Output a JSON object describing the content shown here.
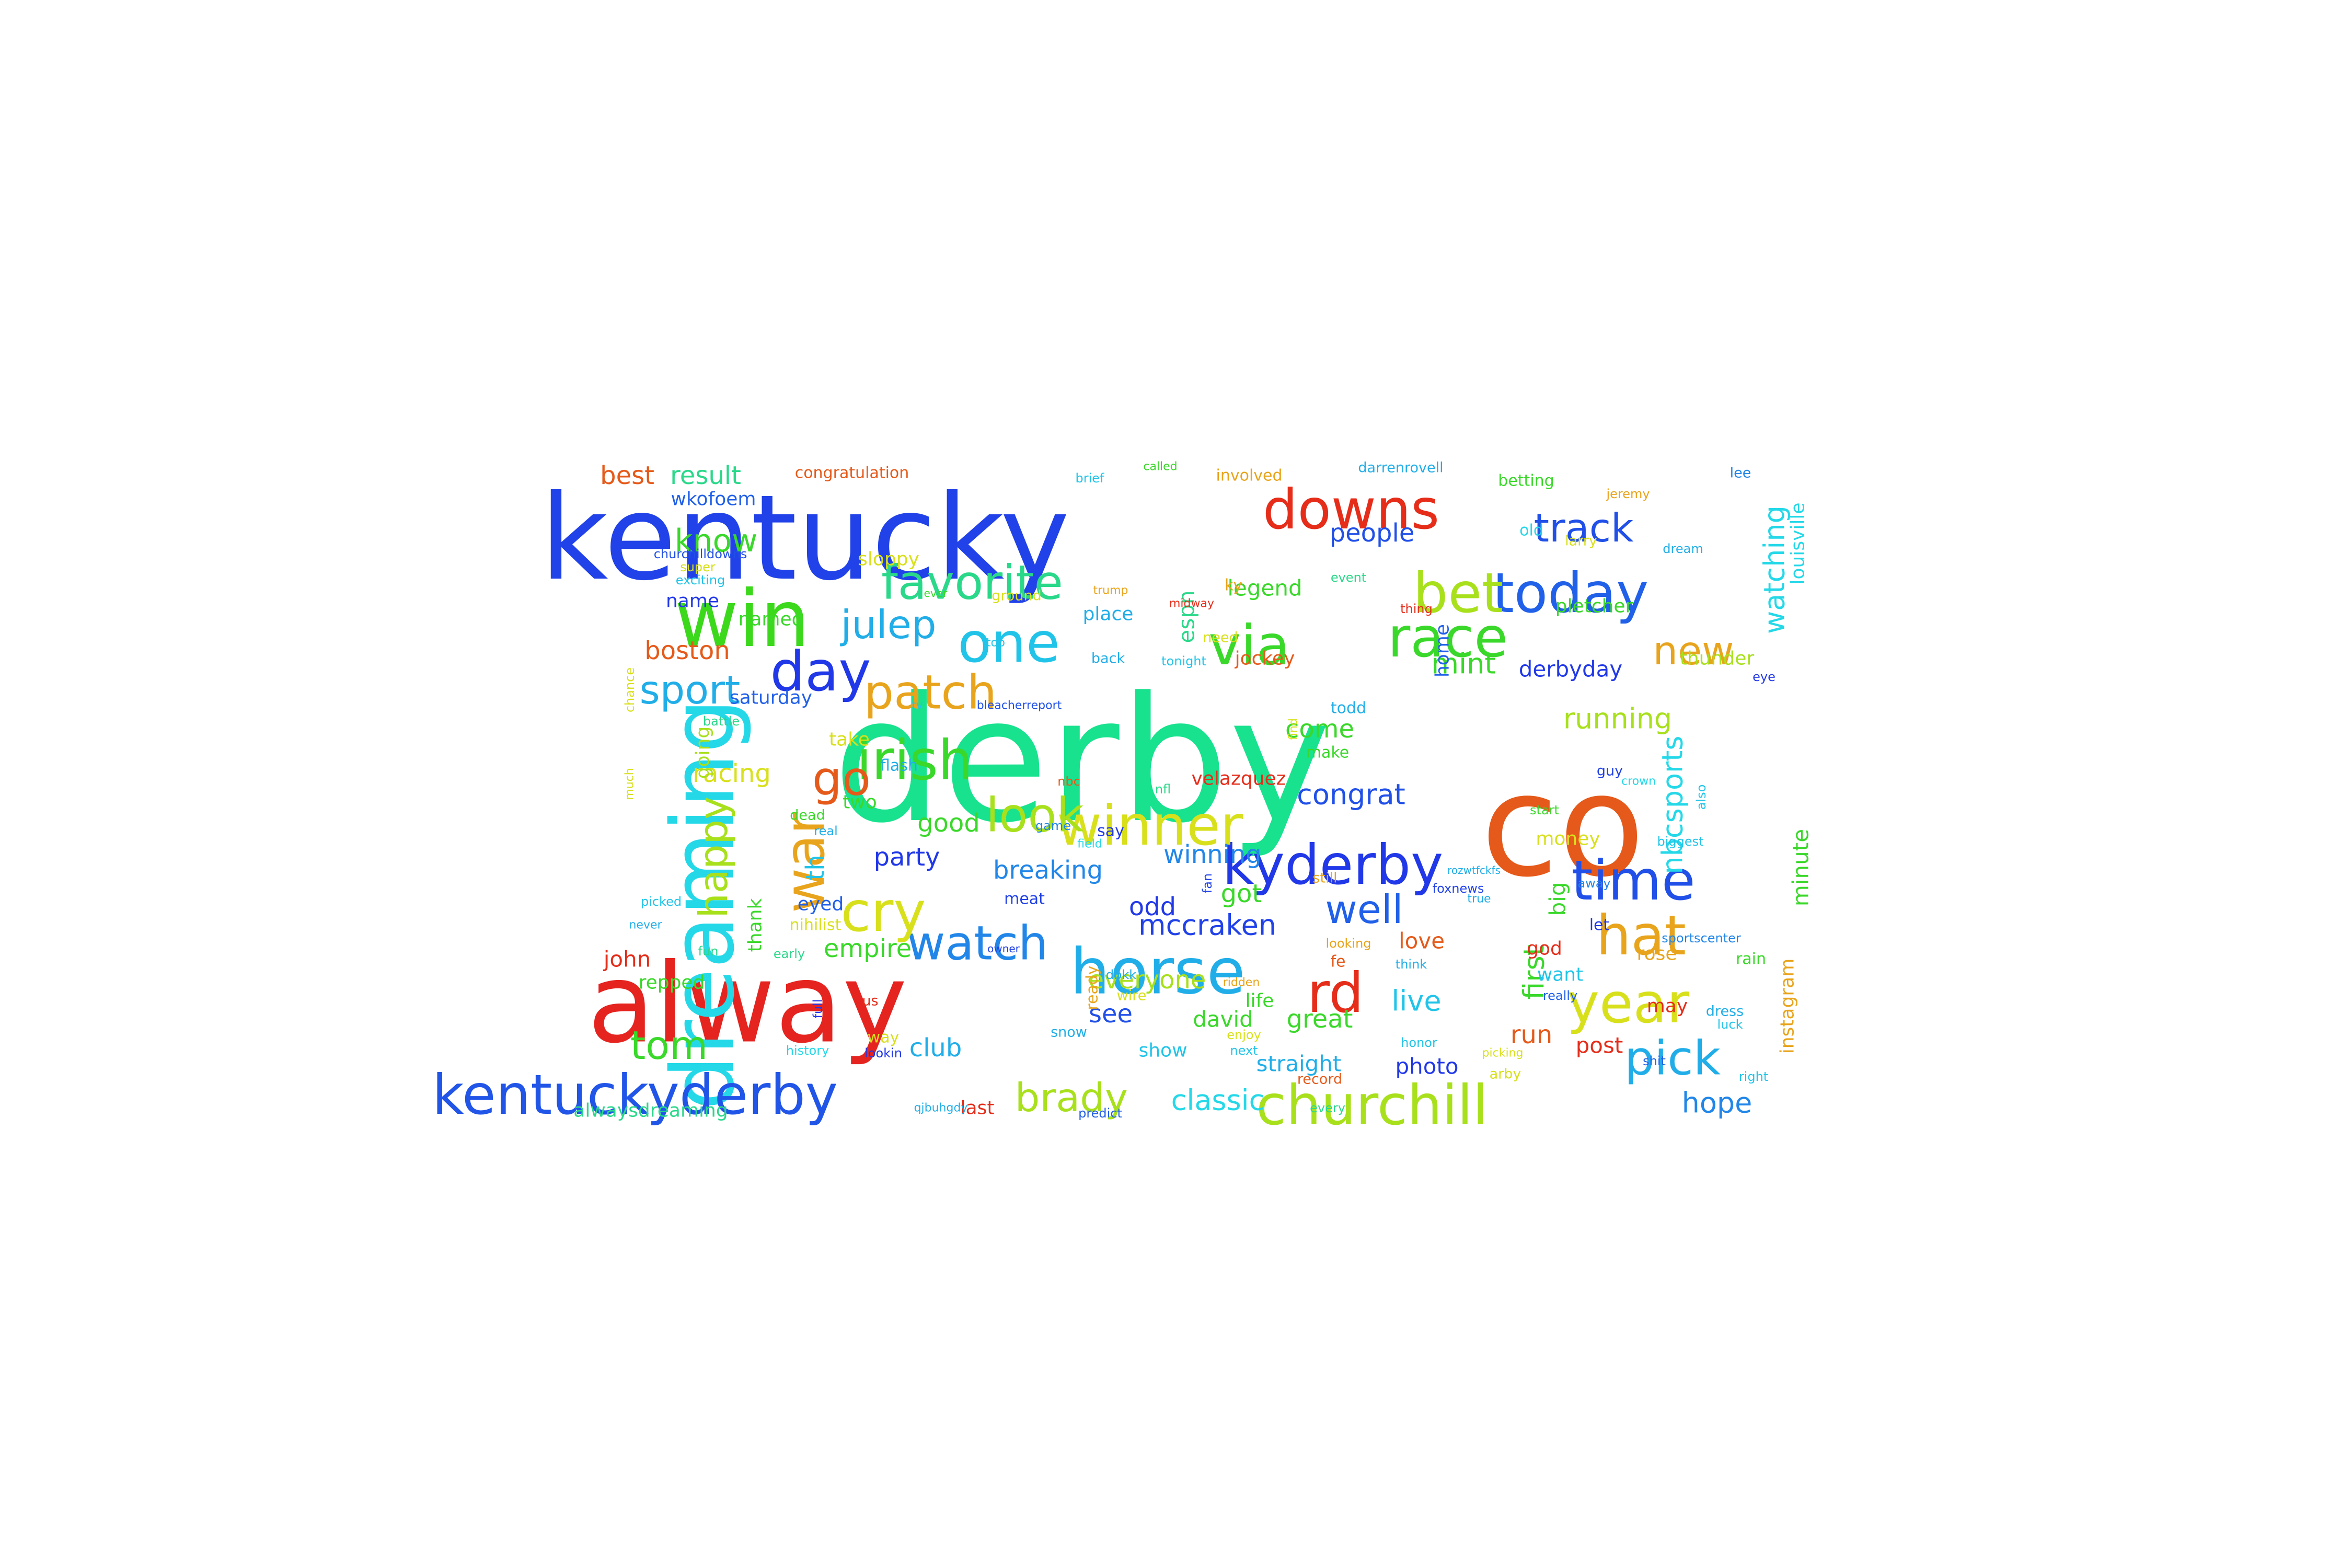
{
  "words": [
    {
      "text": "derby",
      "color": "#18e28e"
    },
    {
      "text": "alway",
      "color": "#e52420"
    },
    {
      "text": "kentucky",
      "color": "#2142e8"
    },
    {
      "text": "co",
      "color": "#e55a1a"
    },
    {
      "text": "win",
      "color": "#3cd81c"
    },
    {
      "text": "dreaming",
      "color": "#24d8e8"
    },
    {
      "text": "kentuckyderby",
      "color": "#2155e8"
    },
    {
      "text": "churchill",
      "color": "#a8e01c"
    },
    {
      "text": "downs",
      "color": "#e52d1a"
    },
    {
      "text": "today",
      "color": "#2160e8"
    },
    {
      "text": "horse",
      "color": "#21aee8"
    },
    {
      "text": "kyderby",
      "color": "#2138e8"
    },
    {
      "text": "irish",
      "color": "#3ad82a"
    },
    {
      "text": "winner",
      "color": "#d8e01c"
    },
    {
      "text": "time",
      "color": "#2150e8"
    },
    {
      "text": "watch",
      "color": "#2186e8"
    },
    {
      "text": "race",
      "color": "#3ad82a"
    },
    {
      "text": "bet",
      "color": "#a8e01c"
    },
    {
      "text": "year",
      "color": "#d8e01c"
    },
    {
      "text": "hat",
      "color": "#e8a41c"
    },
    {
      "text": "cry",
      "color": "#d8e01c"
    },
    {
      "text": "rd",
      "color": "#e52d1a"
    },
    {
      "text": "pick",
      "color": "#21aee8"
    },
    {
      "text": "via",
      "color": "#3ad82a"
    },
    {
      "text": "one",
      "color": "#21c4e8"
    },
    {
      "text": "favorite",
      "color": "#2ad88a"
    },
    {
      "text": "day",
      "color": "#2138e8"
    },
    {
      "text": "patch",
      "color": "#e8a41c"
    },
    {
      "text": "war",
      "color": "#e8a41c"
    },
    {
      "text": "go",
      "color": "#e55a1a"
    },
    {
      "text": "look",
      "color": "#a8e01c"
    },
    {
      "text": "track",
      "color": "#2150e8"
    },
    {
      "text": "new",
      "color": "#e8a41c"
    },
    {
      "text": "tom",
      "color": "#3ad82a"
    },
    {
      "text": "brady",
      "color": "#a8e01c"
    },
    {
      "text": "julep",
      "color": "#21aee8"
    },
    {
      "text": "sport",
      "color": "#21aee8"
    },
    {
      "text": "well",
      "color": "#2160e8"
    },
    {
      "text": "happy",
      "color": "#a8e01c"
    },
    {
      "text": "know",
      "color": "#3ad82a"
    },
    {
      "text": "mccraken",
      "color": "#2142e8"
    },
    {
      "text": "nbcsports",
      "color": "#24d8e8"
    },
    {
      "text": "watching",
      "color": "#24d8e8"
    },
    {
      "text": "congrat",
      "color": "#2150e8"
    },
    {
      "text": "mint",
      "color": "#3ad82a"
    },
    {
      "text": "running",
      "color": "#a8e01c"
    },
    {
      "text": "first",
      "color": "#3ad82a"
    },
    {
      "text": "hope",
      "color": "#2186e8"
    },
    {
      "text": "live",
      "color": "#21c4e8"
    },
    {
      "text": "classic",
      "color": "#24d8e8"
    },
    {
      "text": "best",
      "color": "#e55a1a"
    },
    {
      "text": "result",
      "color": "#2ad88a"
    },
    {
      "text": "people",
      "color": "#2150e8"
    },
    {
      "text": "boston",
      "color": "#e55a1a"
    },
    {
      "text": "racing",
      "color": "#d8e01c"
    },
    {
      "text": "good",
      "color": "#3ad82a"
    },
    {
      "text": "party",
      "color": "#2138e8"
    },
    {
      "text": "breaking",
      "color": "#2186e8"
    },
    {
      "text": "winning",
      "color": "#2186e8"
    },
    {
      "text": "got",
      "color": "#3ad82a"
    },
    {
      "text": "odd",
      "color": "#2138e8"
    },
    {
      "text": "empire",
      "color": "#3ad82a"
    },
    {
      "text": "everyone",
      "color": "#a8e01c"
    },
    {
      "text": "great",
      "color": "#3ad82a"
    },
    {
      "text": "come",
      "color": "#3ad82a"
    },
    {
      "text": "legend",
      "color": "#3ad82a"
    },
    {
      "text": "club",
      "color": "#21aee8"
    },
    {
      "text": "see",
      "color": "#2150e8"
    },
    {
      "text": "derbyday",
      "color": "#2138e8"
    },
    {
      "text": "big",
      "color": "#3ad82a"
    },
    {
      "text": "love",
      "color": "#e55a1a"
    },
    {
      "text": "run",
      "color": "#e55a1a"
    },
    {
      "text": "post",
      "color": "#e52d1a"
    },
    {
      "text": "straight",
      "color": "#21aee8"
    },
    {
      "text": "photo",
      "color": "#2138e8"
    },
    {
      "text": "show",
      "color": "#21c4e8"
    },
    {
      "text": "david",
      "color": "#3ad82a"
    },
    {
      "text": "life",
      "color": "#3ad82a"
    },
    {
      "text": "john",
      "color": "#e52d1a"
    },
    {
      "text": "repped",
      "color": "#3ad82a"
    },
    {
      "text": "alwaysdreaming",
      "color": "#2ad88a"
    },
    {
      "text": "last",
      "color": "#e52d1a"
    },
    {
      "text": "th",
      "color": "#21c4e8"
    },
    {
      "text": "espn",
      "color": "#2ad88a"
    },
    {
      "text": "minute",
      "color": "#3ad82a"
    },
    {
      "text": "instagram",
      "color": "#e8a41c"
    },
    {
      "text": "louisville",
      "color": "#24d8e8"
    },
    {
      "text": "congratulation",
      "color": "#e55a1a"
    },
    {
      "text": "wkofoem",
      "color": "#2160e8"
    },
    {
      "text": "sloppy",
      "color": "#d8e01c"
    },
    {
      "text": "name",
      "color": "#2138e8"
    },
    {
      "text": "named",
      "color": "#3ad82a"
    },
    {
      "text": "saturday",
      "color": "#2160e8"
    },
    {
      "text": "jockey",
      "color": "#e55a1a"
    },
    {
      "text": "velazquez",
      "color": "#e52d1a"
    },
    {
      "text": "pletcher",
      "color": "#3ad82a"
    },
    {
      "text": "thunder",
      "color": "#a8e01c"
    },
    {
      "text": "going",
      "color": "#a8e01c"
    },
    {
      "text": "take",
      "color": "#d8e01c"
    },
    {
      "text": "flash",
      "color": "#21aee8"
    },
    {
      "text": "two",
      "color": "#3ad82a"
    },
    {
      "text": "place",
      "color": "#21aee8"
    },
    {
      "text": "home",
      "color": "#2160e8"
    },
    {
      "text": "money",
      "color": "#d8e01c"
    },
    {
      "text": "eyed",
      "color": "#2160e8"
    },
    {
      "text": "nihilist",
      "color": "#d8e01c"
    },
    {
      "text": "thank",
      "color": "#3ad82a"
    },
    {
      "text": "god",
      "color": "#e52d1a"
    },
    {
      "text": "rose",
      "color": "#e8a41c"
    },
    {
      "text": "want",
      "color": "#21c4e8"
    },
    {
      "text": "may",
      "color": "#e52d1a"
    },
    {
      "text": "todd",
      "color": "#21aee8"
    },
    {
      "text": "make",
      "color": "#3ad82a"
    },
    {
      "text": "involved",
      "color": "#e8a41c"
    },
    {
      "text": "betting",
      "color": "#3ad82a"
    },
    {
      "text": "darrenrovell",
      "color": "#21aee8"
    },
    {
      "text": "old",
      "color": "#24d8e8"
    },
    {
      "text": "larry",
      "color": "#d8e01c"
    },
    {
      "text": "jeremy",
      "color": "#e8a41c"
    },
    {
      "text": "lee",
      "color": "#2186e8"
    },
    {
      "text": "dream",
      "color": "#21aee8"
    },
    {
      "text": "event",
      "color": "#2ad88a"
    },
    {
      "text": "ky",
      "color": "#e8a41c"
    },
    {
      "text": "need",
      "color": "#d8e01c"
    },
    {
      "text": "tonight",
      "color": "#21c4e8"
    },
    {
      "text": "back",
      "color": "#21aee8"
    },
    {
      "text": "brief",
      "color": "#21c4e8"
    },
    {
      "text": "called",
      "color": "#3ad82a"
    },
    {
      "text": "churchilldowns",
      "color": "#2150e8"
    },
    {
      "text": "super",
      "color": "#d8e01c"
    },
    {
      "text": "exciting",
      "color": "#21c4e8"
    },
    {
      "text": "ground",
      "color": "#d8e01c"
    },
    {
      "text": "midway",
      "color": "#e52d1a"
    },
    {
      "text": "trump",
      "color": "#e8a41c"
    },
    {
      "text": "thing",
      "color": "#e52d1a"
    },
    {
      "text": "eye",
      "color": "#2138e8"
    },
    {
      "text": "battle",
      "color": "#2ad88a"
    },
    {
      "text": "chance",
      "color": "#d8e01c"
    },
    {
      "text": "much",
      "color": "#d8e01c"
    },
    {
      "text": "dead",
      "color": "#3ad82a"
    },
    {
      "text": "real",
      "color": "#21aee8"
    },
    {
      "text": "nbc",
      "color": "#e55a1a"
    },
    {
      "text": "nfl",
      "color": "#2ad88a"
    },
    {
      "text": "say",
      "color": "#2138e8"
    },
    {
      "text": "game",
      "color": "#2186e8"
    },
    {
      "text": "meat",
      "color": "#2142e8"
    },
    {
      "text": "ready",
      "color": "#e8a41c"
    },
    {
      "text": "field",
      "color": "#24d8e8"
    },
    {
      "text": "wire",
      "color": "#d8e01c"
    },
    {
      "text": "snow",
      "color": "#21aee8"
    },
    {
      "text": "ridden",
      "color": "#e8a41c"
    },
    {
      "text": "enjoy",
      "color": "#d8e01c"
    },
    {
      "text": "next",
      "color": "#21c4e8"
    },
    {
      "text": "record",
      "color": "#e55a1a"
    },
    {
      "text": "every",
      "color": "#2ad88a"
    },
    {
      "text": "fe",
      "color": "#e55a1a"
    },
    {
      "text": "think",
      "color": "#21aee8"
    },
    {
      "text": "looking",
      "color": "#e8a41c"
    },
    {
      "text": "honor",
      "color": "#21c4e8"
    },
    {
      "text": "picking",
      "color": "#d8e01c"
    },
    {
      "text": "arby",
      "color": "#d8e01c"
    },
    {
      "text": "really",
      "color": "#2160e8"
    },
    {
      "text": "shit",
      "color": "#2160e8"
    },
    {
      "text": "right",
      "color": "#21c4e8"
    },
    {
      "text": "luck",
      "color": "#21c4e8"
    },
    {
      "text": "dress",
      "color": "#21aee8"
    },
    {
      "text": "rain",
      "color": "#3ad82a"
    },
    {
      "text": "biggest",
      "color": "#21c4e8"
    },
    {
      "text": "sportscenter",
      "color": "#2186e8"
    },
    {
      "text": "let",
      "color": "#2138e8"
    },
    {
      "text": "away",
      "color": "#2186e8"
    },
    {
      "text": "foxnews",
      "color": "#2142e8"
    },
    {
      "text": "true",
      "color": "#21aee8"
    },
    {
      "text": "still",
      "color": "#e8a41c"
    },
    {
      "text": "guy",
      "color": "#2142e8"
    },
    {
      "text": "start",
      "color": "#3ad82a"
    },
    {
      "text": "also",
      "color": "#21c4e8"
    },
    {
      "text": "find",
      "color": "#d8e01c"
    },
    {
      "text": "us",
      "color": "#e52d1a"
    },
    {
      "text": "full",
      "color": "#2138e8"
    },
    {
      "text": "way",
      "color": "#d8e01c"
    },
    {
      "text": "history",
      "color": "#24d8e8"
    },
    {
      "text": "lookin",
      "color": "#2138e8"
    },
    {
      "text": "predict",
      "color": "#2160e8"
    },
    {
      "text": "fun",
      "color": "#2ad88a"
    },
    {
      "text": "early",
      "color": "#2ad88a"
    },
    {
      "text": "never",
      "color": "#21aee8"
    },
    {
      "text": "picked",
      "color": "#21c4e8"
    },
    {
      "text": "bleacherreport",
      "color": "#2150e8"
    },
    {
      "text": "tv",
      "color": "#21c4e8"
    },
    {
      "text": "top",
      "color": "#21c4e8"
    },
    {
      "text": "ever",
      "color": "#3ad82a"
    },
    {
      "text": "dbkk",
      "color": "#21aee8"
    },
    {
      "text": "qjbuhgdy",
      "color": "#21aee8"
    },
    {
      "text": "fan",
      "color": "#2142e8"
    },
    {
      "text": "crown",
      "color": "#24d8e8"
    },
    {
      "text": "owner",
      "color": "#2142e8"
    },
    {
      "text": "rozwtfckfs",
      "color": "#21aee8"
    }
  ]
}
